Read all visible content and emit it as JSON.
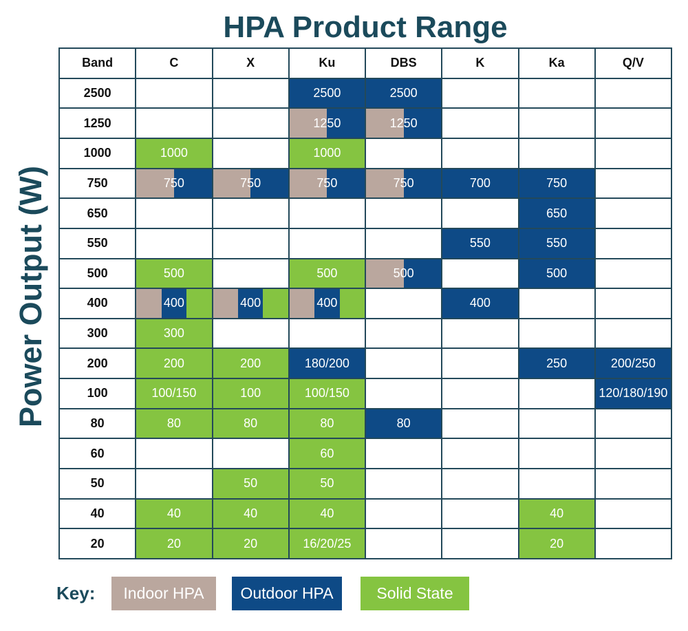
{
  "colors": {
    "title_text": "#1b4a5b",
    "grid_line": "#23495a",
    "label_text": "#111111",
    "cell_text": "#ffffff"
  },
  "chart_data": {
    "type": "table",
    "title": "HPA Product Range",
    "ylabel": "Power Output (W)",
    "corner_header": "Band",
    "columns": [
      "C",
      "X",
      "Ku",
      "DBS",
      "K",
      "Ka",
      "Q/V"
    ],
    "legend": {
      "label": "Key:",
      "items": [
        {
          "label": "Indoor HPA",
          "color": "#baa79e"
        },
        {
          "label": "Outdoor HPA",
          "color": "#0e4a86"
        },
        {
          "label": "Solid State",
          "color": "#85c441"
        }
      ]
    },
    "rows": [
      {
        "label": "2500",
        "cells": [
          null,
          null,
          {
            "text": "2500",
            "fill": [
              1
            ]
          },
          {
            "text": "2500",
            "fill": [
              1
            ]
          },
          null,
          null,
          null
        ]
      },
      {
        "label": "1250",
        "cells": [
          null,
          null,
          {
            "text": "1250",
            "fill": [
              0,
              1
            ]
          },
          {
            "text": "1250",
            "fill": [
              0,
              1
            ]
          },
          null,
          null,
          null
        ]
      },
      {
        "label": "1000",
        "cells": [
          {
            "text": "1000",
            "fill": [
              2
            ]
          },
          null,
          {
            "text": "1000",
            "fill": [
              2
            ]
          },
          null,
          null,
          null,
          null
        ]
      },
      {
        "label": "750",
        "cells": [
          {
            "text": "750",
            "fill": [
              0,
              1
            ]
          },
          {
            "text": "750",
            "fill": [
              0,
              1
            ]
          },
          {
            "text": "750",
            "fill": [
              0,
              1
            ]
          },
          {
            "text": "750",
            "fill": [
              0,
              1
            ]
          },
          {
            "text": "700",
            "fill": [
              1
            ]
          },
          {
            "text": "750",
            "fill": [
              1
            ]
          },
          null
        ]
      },
      {
        "label": "650",
        "cells": [
          null,
          null,
          null,
          null,
          null,
          {
            "text": "650",
            "fill": [
              1
            ]
          },
          null
        ]
      },
      {
        "label": "550",
        "cells": [
          null,
          null,
          null,
          null,
          {
            "text": "550",
            "fill": [
              1
            ]
          },
          {
            "text": "550",
            "fill": [
              1
            ]
          },
          null
        ]
      },
      {
        "label": "500",
        "cells": [
          {
            "text": "500",
            "fill": [
              2
            ]
          },
          null,
          {
            "text": "500",
            "fill": [
              2
            ]
          },
          {
            "text": "500",
            "fill": [
              0,
              1
            ]
          },
          null,
          {
            "text": "500",
            "fill": [
              1
            ]
          },
          null
        ]
      },
      {
        "label": "400",
        "cells": [
          {
            "text": "400",
            "fill": [
              0,
              1,
              2
            ]
          },
          {
            "text": "400",
            "fill": [
              0,
              1,
              2
            ]
          },
          {
            "text": "400",
            "fill": [
              0,
              1,
              2
            ]
          },
          null,
          {
            "text": "400",
            "fill": [
              1
            ]
          },
          null,
          null
        ]
      },
      {
        "label": "300",
        "cells": [
          {
            "text": "300",
            "fill": [
              2
            ]
          },
          null,
          null,
          null,
          null,
          null,
          null
        ]
      },
      {
        "label": "200",
        "cells": [
          {
            "text": "200",
            "fill": [
              2
            ]
          },
          {
            "text": "200",
            "fill": [
              2
            ]
          },
          {
            "text": "180/200",
            "fill": [
              1
            ]
          },
          null,
          null,
          {
            "text": "250",
            "fill": [
              1
            ]
          },
          {
            "text": "200/250",
            "fill": [
              1
            ]
          }
        ]
      },
      {
        "label": "100",
        "cells": [
          {
            "text": "100/150",
            "fill": [
              2
            ]
          },
          {
            "text": "100",
            "fill": [
              2
            ]
          },
          {
            "text": "100/150",
            "fill": [
              2
            ]
          },
          null,
          null,
          null,
          {
            "text": "120/180/190",
            "fill": [
              1
            ]
          }
        ]
      },
      {
        "label": "80",
        "cells": [
          {
            "text": "80",
            "fill": [
              2
            ]
          },
          {
            "text": "80",
            "fill": [
              2
            ]
          },
          {
            "text": "80",
            "fill": [
              2
            ]
          },
          {
            "text": "80",
            "fill": [
              1
            ]
          },
          null,
          null,
          null
        ]
      },
      {
        "label": "60",
        "cells": [
          null,
          null,
          {
            "text": "60",
            "fill": [
              2
            ]
          },
          null,
          null,
          null,
          null
        ]
      },
      {
        "label": "50",
        "cells": [
          null,
          {
            "text": "50",
            "fill": [
              2
            ]
          },
          {
            "text": "50",
            "fill": [
              2
            ]
          },
          null,
          null,
          null,
          null
        ]
      },
      {
        "label": "40",
        "cells": [
          {
            "text": "40",
            "fill": [
              2
            ]
          },
          {
            "text": "40",
            "fill": [
              2
            ]
          },
          {
            "text": "40",
            "fill": [
              2
            ]
          },
          null,
          null,
          {
            "text": "40",
            "fill": [
              2
            ]
          },
          null
        ]
      },
      {
        "label": "20",
        "cells": [
          {
            "text": "20",
            "fill": [
              2
            ]
          },
          {
            "text": "20",
            "fill": [
              2
            ]
          },
          {
            "text": "16/20/25",
            "fill": [
              2
            ]
          },
          null,
          null,
          {
            "text": "20",
            "fill": [
              2
            ]
          },
          null
        ]
      }
    ]
  }
}
